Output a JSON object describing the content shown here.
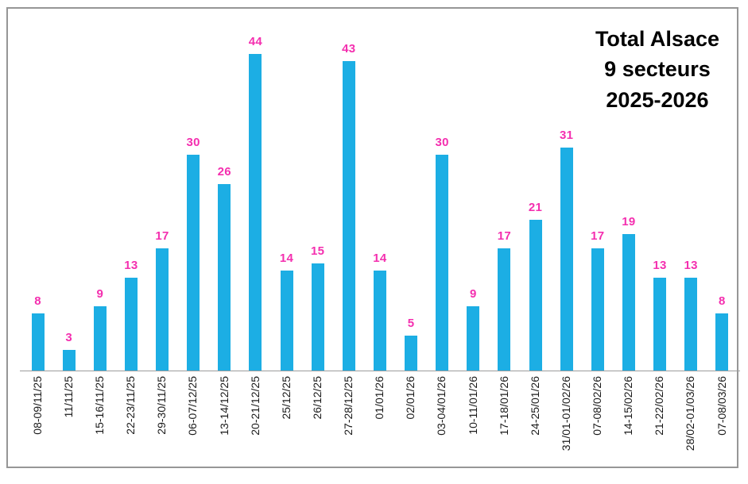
{
  "title": {
    "line1": "Total Alsace",
    "line2": "9 secteurs",
    "line3": "2025-2026"
  },
  "colors": {
    "bar": "#1CAEE4",
    "data_label": "#F42FAF",
    "axis_line": "#9B9B9B",
    "frame_border": "#969696",
    "axis_text": "#1A1A1A",
    "background": "#FFFFFF"
  },
  "chart_data": {
    "type": "bar",
    "title": "Total Alsace 9 secteurs 2025-2026",
    "xlabel": "",
    "ylabel": "",
    "ylim": [
      0,
      44
    ],
    "grid": false,
    "legend": false,
    "y_axis_visible": false,
    "data_labels": true,
    "categories": [
      "08-09/11/25",
      "11/11/25",
      "15-16/11/25",
      "22-23/11/25",
      "29-30/11/25",
      "06-07/12/25",
      "13-14/12/25",
      "20-21/12/25",
      "25/12/25",
      "26/12/25",
      "27-28/12/25",
      "01/01/26",
      "02/01/26",
      "03-04/01/26",
      "10-11/01/26",
      "17-18/01/26",
      "24-25/01/26",
      "31/01-01/02/26",
      "07-08/02/26",
      "14-15/02/26",
      "21-22/02/26",
      "28/02-01/03/26",
      "07-08/03/26"
    ],
    "values": [
      8,
      3,
      9,
      13,
      17,
      30,
      26,
      44,
      14,
      15,
      43,
      14,
      5,
      30,
      9,
      17,
      21,
      31,
      17,
      19,
      13,
      13,
      8
    ]
  }
}
